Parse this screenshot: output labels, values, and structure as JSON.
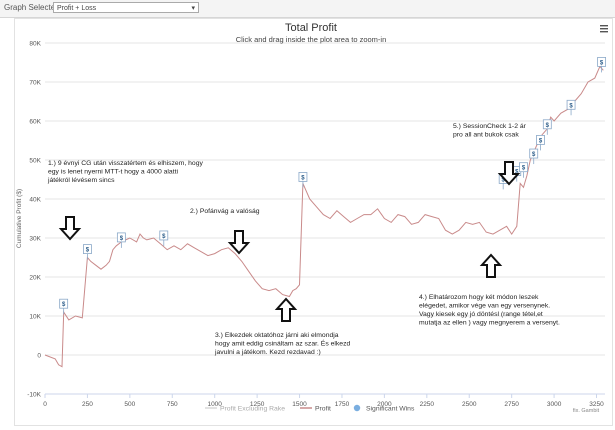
{
  "toolbar": {
    "graph_label": "Graph  Selected:",
    "graph_value": "Profit + Loss"
  },
  "chart_data": {
    "type": "line",
    "title": "Total Profit",
    "subtitle": "Click and drag inside the plot area to zoom-in",
    "ylabel": "Cumulative Profit ($)",
    "xlabel": "",
    "xlim": [
      0,
      3300
    ],
    "ylim": [
      -10000,
      80000
    ],
    "x_ticks": [
      0,
      250,
      500,
      750,
      1000,
      1250,
      1500,
      1750,
      2000,
      2250,
      2500,
      2750,
      3000,
      3250
    ],
    "y_ticks": [
      -10000,
      0,
      10000,
      20000,
      30000,
      40000,
      50000,
      60000,
      70000,
      80000
    ],
    "x_tick_labels": [
      "0",
      "250",
      "500",
      "750",
      "1000",
      "1250",
      "1500",
      "1750",
      "2000",
      "2250",
      "2500",
      "2750",
      "3000",
      "3250"
    ],
    "y_tick_labels": [
      "-10K",
      "0",
      "10K",
      "20K",
      "30K",
      "40K",
      "50K",
      "60K",
      "70K",
      "80K"
    ],
    "grid": "horizontal",
    "legend": "bottom",
    "legend_entries": [
      "Profit Excluding Rake",
      "Profit",
      "Significant Wins"
    ],
    "series": [
      {
        "name": "Profit",
        "color": "#c98a8a",
        "x": [
          0,
          60,
          80,
          100,
          110,
          140,
          180,
          220,
          250,
          270,
          300,
          330,
          360,
          380,
          400,
          420,
          450,
          500,
          540,
          560,
          580,
          600,
          640,
          680,
          720,
          760,
          800,
          840,
          880,
          920,
          960,
          1000,
          1040,
          1080,
          1120,
          1160,
          1200,
          1240,
          1280,
          1320,
          1360,
          1400,
          1440,
          1460,
          1480,
          1500,
          1520,
          1560,
          1600,
          1640,
          1680,
          1720,
          1760,
          1800,
          1840,
          1880,
          1920,
          1960,
          2000,
          2040,
          2080,
          2120,
          2160,
          2200,
          2240,
          2280,
          2320,
          2360,
          2400,
          2440,
          2480,
          2520,
          2560,
          2600,
          2640,
          2680,
          2720,
          2750,
          2780,
          2800,
          2820,
          2840,
          2860,
          2880,
          2900,
          2920,
          2940,
          2960,
          2980,
          3000,
          3040,
          3080,
          3120,
          3160,
          3200,
          3240,
          3270,
          3290
        ],
        "values": [
          0,
          -1000,
          -2500,
          -3000,
          11000,
          9000,
          10000,
          9500,
          25000,
          24000,
          23000,
          22000,
          23000,
          24000,
          27000,
          28000,
          29000,
          30000,
          29000,
          31000,
          30000,
          29500,
          30000,
          28500,
          27000,
          28000,
          27000,
          28500,
          27500,
          26500,
          25500,
          26000,
          27000,
          27500,
          26000,
          24000,
          21500,
          19000,
          17000,
          16500,
          17000,
          15500,
          15000,
          16500,
          17000,
          18000,
          44000,
          40000,
          38000,
          36000,
          35000,
          37000,
          35500,
          34000,
          35000,
          36000,
          36000,
          37500,
          35000,
          34000,
          36000,
          35500,
          33500,
          34000,
          36000,
          35500,
          35000,
          32000,
          31000,
          32000,
          34000,
          33500,
          34000,
          31500,
          31000,
          32000,
          33000,
          31000,
          33000,
          44000,
          43000,
          46000,
          50000,
          52000,
          54000,
          56000,
          57000,
          58000,
          61000,
          60000,
          62000,
          63000,
          65000,
          67000,
          70000,
          71000,
          74000,
          73000
        ]
      }
    ],
    "significant_wins": [
      {
        "x": 110,
        "y": 12000,
        "label": "$"
      },
      {
        "x": 250,
        "y": 26000,
        "label": "$"
      },
      {
        "x": 450,
        "y": 29000,
        "label": "$"
      },
      {
        "x": 700,
        "y": 29500,
        "label": "$"
      },
      {
        "x": 1520,
        "y": 44500,
        "label": "$"
      },
      {
        "x": 2700,
        "y": 44000,
        "label": "$"
      },
      {
        "x": 2780,
        "y": 46000,
        "label": "$"
      },
      {
        "x": 2820,
        "y": 47000,
        "label": "$"
      },
      {
        "x": 2880,
        "y": 50500,
        "label": "$"
      },
      {
        "x": 2920,
        "y": 54000,
        "label": "$"
      },
      {
        "x": 2960,
        "y": 58000,
        "label": "$"
      },
      {
        "x": 3100,
        "y": 63000,
        "label": "$"
      },
      {
        "x": 3280,
        "y": 74000,
        "label": "$"
      }
    ],
    "annotations": {
      "a1": [
        "1.) 9 évnyi CG után visszatértem és elhiszem, hogy",
        "egy is lenet nyerni MTT-t hogy a 4000 alatti",
        "játékról lévésem sincs"
      ],
      "a2": [
        "2.) Pofánvág a valóság"
      ],
      "a3": [
        "3.) Elkezdek oktatóhoz járni aki elmondja",
        "hogy amit eddig csináltam az szar. És elkezd",
        "javulni a játékom. Kezd rezdavad :)"
      ],
      "a4": [
        "4.) Elhatározom hogy két módon leszek",
        "elégedet, amikor vége van egy versenynek.",
        "Vagy kiesek egy jó döntésl (range tétel,et",
        "mutatja az ellen ) vagy megnyerem a versenyt."
      ],
      "a5": [
        "5.) SessionCheck 1-2 ár",
        "pro all ant bukok csak"
      ]
    },
    "credit": "fix. Gambit"
  }
}
